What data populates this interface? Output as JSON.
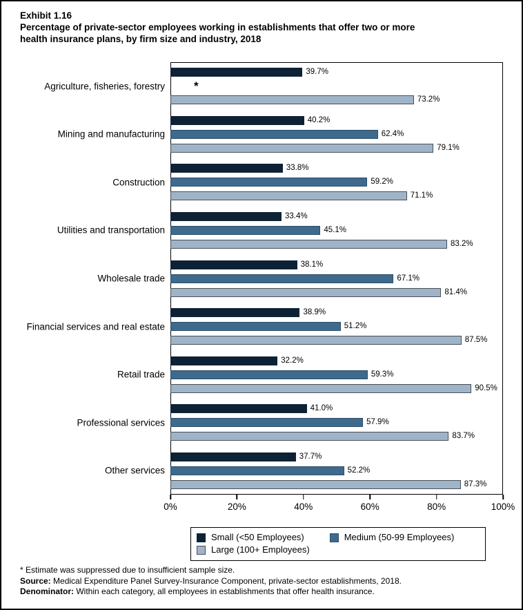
{
  "title": {
    "exhibit": "Exhibit 1.16",
    "line1": "Percentage of private-sector employees working in establishments that offer two or more",
    "line2": "health insurance plans, by firm size and industry, 2018"
  },
  "chart_data": {
    "type": "bar",
    "orientation": "horizontal",
    "title": "Percentage of private-sector employees working in establishments that offer two or more health insurance plans, by firm size and industry, 2018",
    "categories": [
      "Agriculture, fisheries, forestry",
      "Mining and manufacturing",
      "Construction",
      "Utilities and transportation",
      "Wholesale trade",
      "Financial services and real estate",
      "Retail trade",
      "Professional services",
      "Other services"
    ],
    "series": [
      {
        "key": "small",
        "name": "Small (<50 Employees)",
        "color": "#0d2235",
        "border_color": "#0d2235",
        "values": [
          39.7,
          40.2,
          33.8,
          33.4,
          38.1,
          38.9,
          32.2,
          41.0,
          37.7
        ]
      },
      {
        "key": "medium",
        "name": "Medium (50-99 Employees)",
        "color": "#3e6a8e",
        "border_color": "#2c4d67",
        "values": [
          null,
          62.4,
          59.2,
          45.1,
          67.1,
          51.2,
          59.3,
          57.9,
          52.2
        ]
      },
      {
        "key": "large",
        "name": "Large (100+ Employees)",
        "color": "#a0b4c8",
        "border_color": "#474f57",
        "values": [
          73.2,
          79.1,
          71.1,
          83.2,
          81.4,
          87.5,
          90.5,
          83.7,
          87.3
        ]
      }
    ],
    "suppressed_marker": "*",
    "xlim": [
      0,
      100
    ],
    "x_ticks": [
      "0%",
      "20%",
      "40%",
      "60%",
      "80%",
      "100%"
    ],
    "value_suffix": "%",
    "grid": false,
    "legend_position": "bottom"
  },
  "footnotes": {
    "suppressed_note": "* Estimate was suppressed due to insufficient sample size.",
    "source_label": "Source:",
    "source_text": "Medical Expenditure Panel Survey-Insurance Component, private-sector establishments, 2018.",
    "denominator_label": "Denominator:",
    "denominator_text": "Within each category, all employees in establishments that offer health insurance."
  }
}
